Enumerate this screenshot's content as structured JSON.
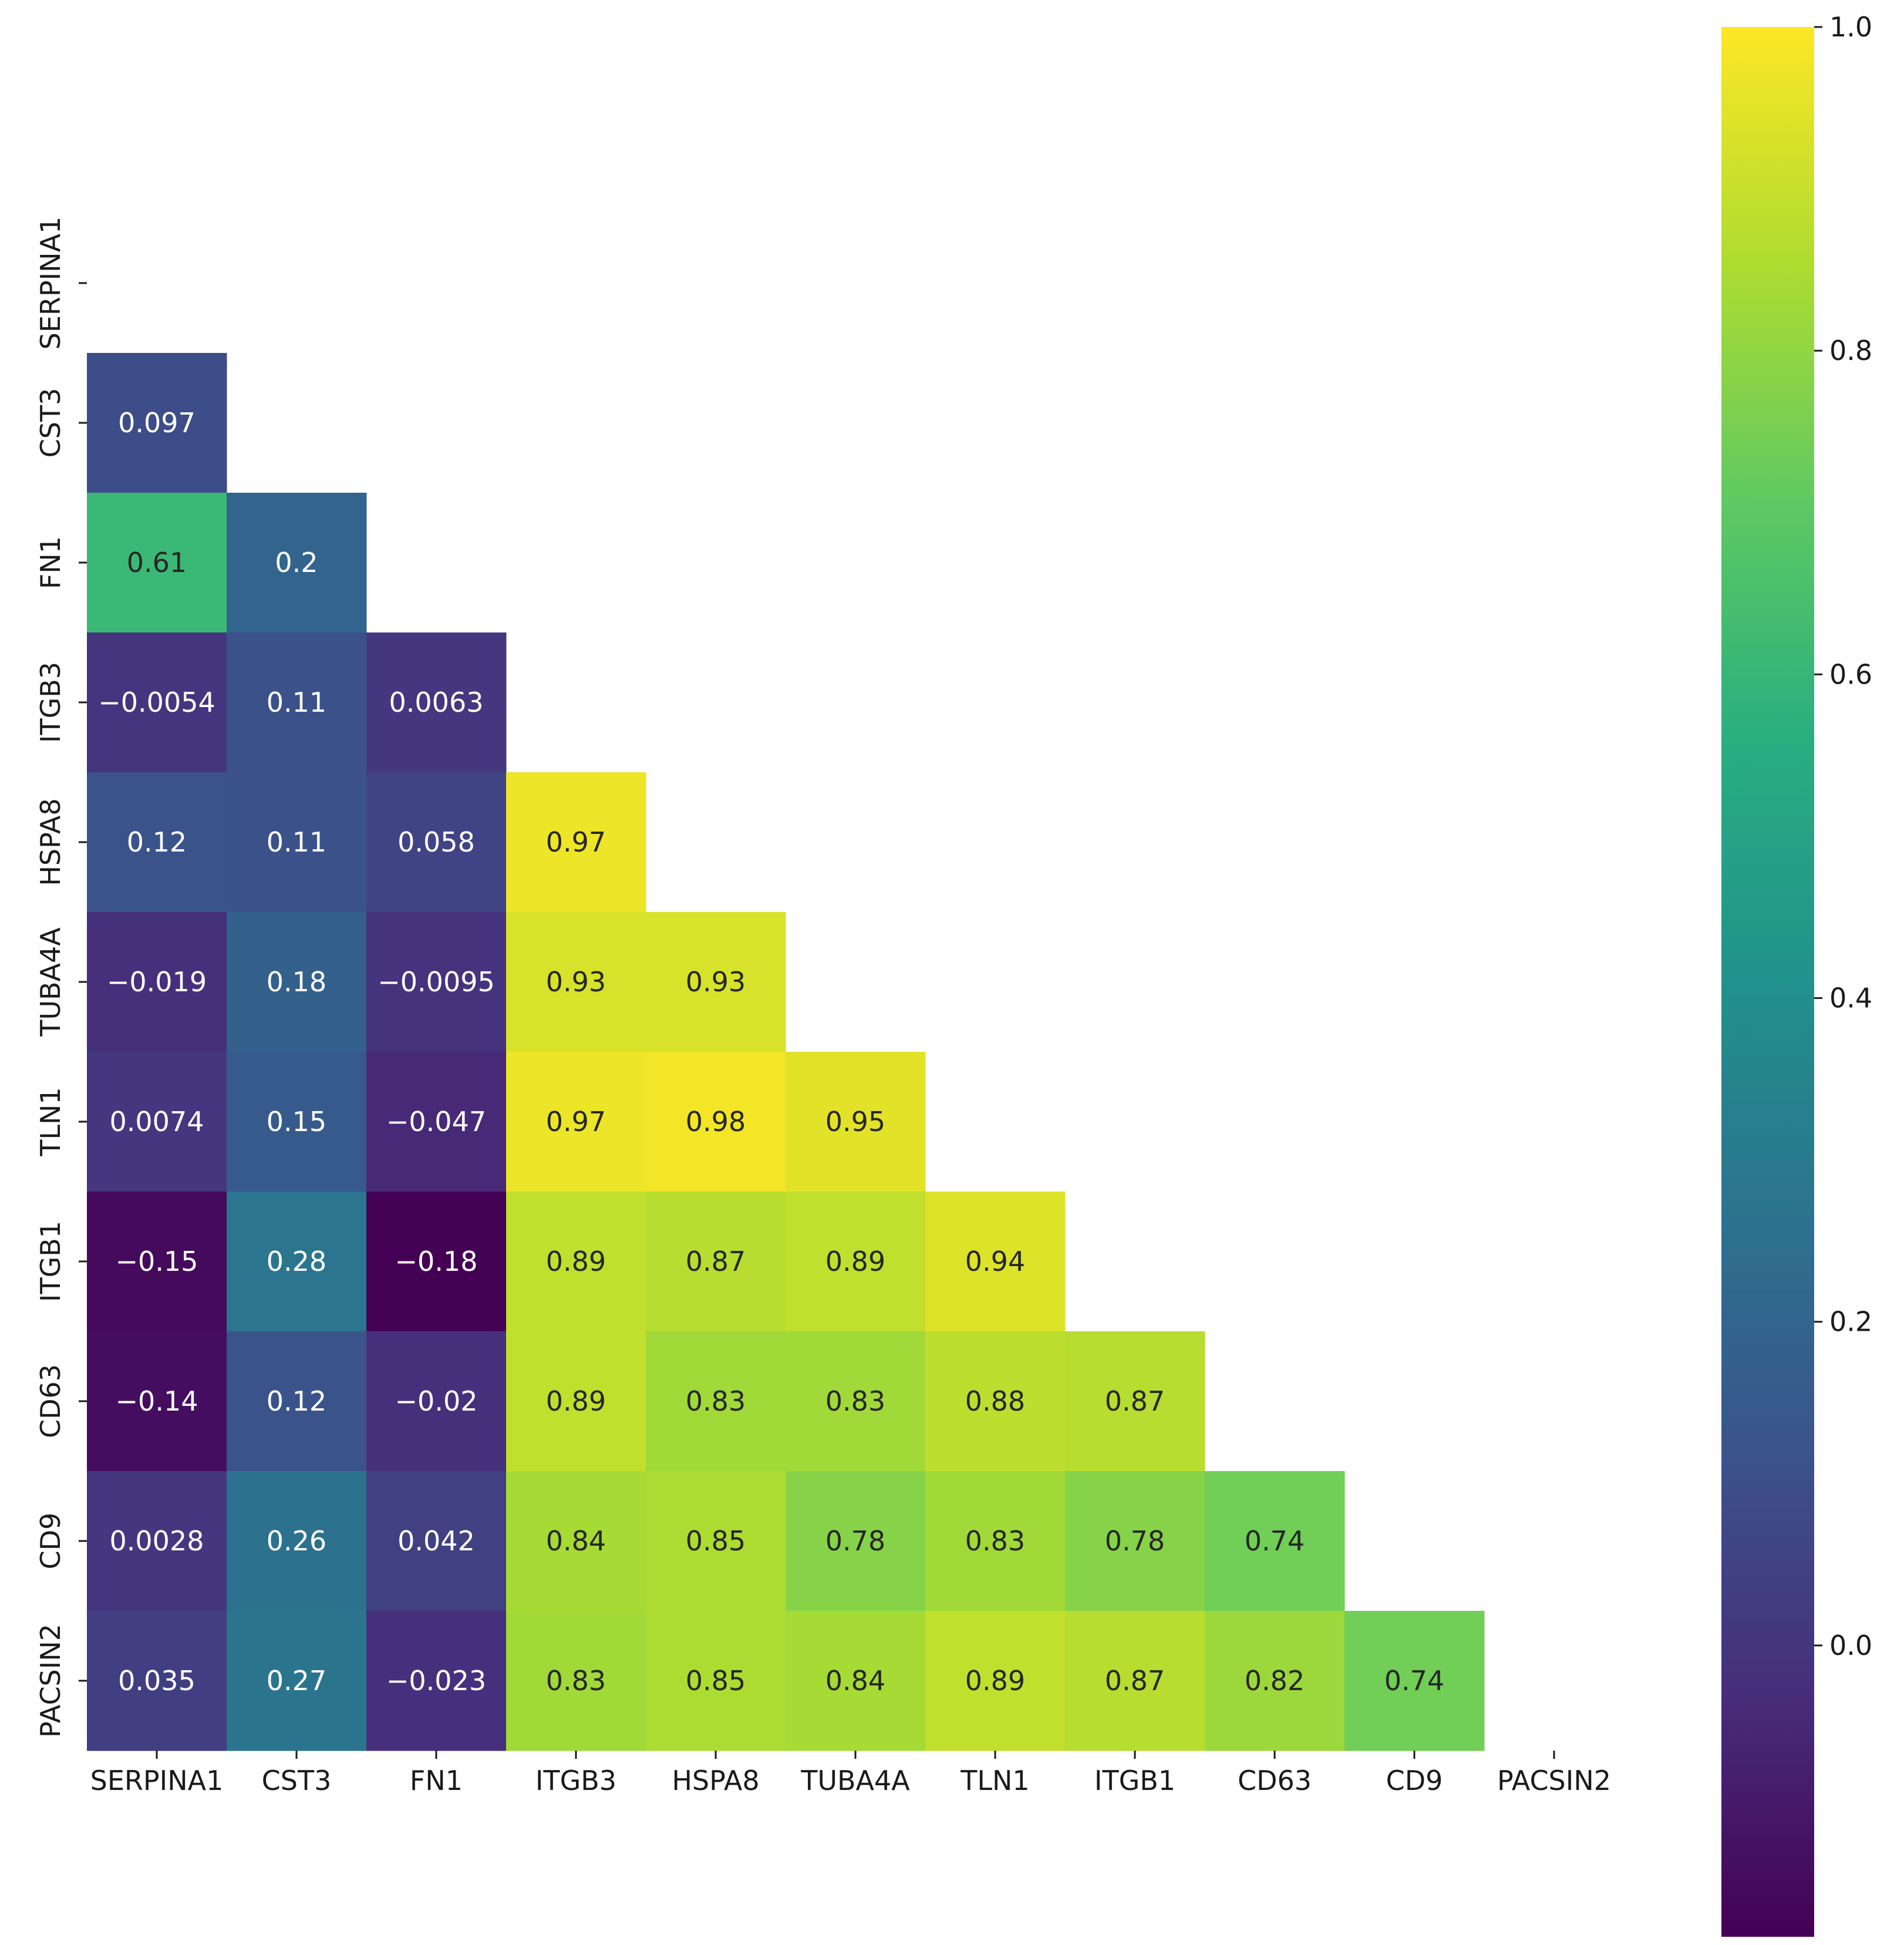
{
  "chart_data": {
    "type": "heatmap",
    "title": "",
    "xlabel": "",
    "ylabel": "",
    "labels": [
      "SERPINA1",
      "CST3",
      "FN1",
      "ITGB3",
      "HSPA8",
      "TUBA4A",
      "TLN1",
      "ITGB1",
      "CD63",
      "CD9",
      "PACSIN2"
    ],
    "mask": "upper-triangle-including-diagonal",
    "values": [
      [
        null,
        null,
        null,
        null,
        null,
        null,
        null,
        null,
        null,
        null,
        null
      ],
      [
        0.097,
        null,
        null,
        null,
        null,
        null,
        null,
        null,
        null,
        null,
        null
      ],
      [
        0.61,
        0.2,
        null,
        null,
        null,
        null,
        null,
        null,
        null,
        null,
        null
      ],
      [
        -0.0054,
        0.11,
        0.0063,
        null,
        null,
        null,
        null,
        null,
        null,
        null,
        null
      ],
      [
        0.12,
        0.11,
        0.058,
        0.97,
        null,
        null,
        null,
        null,
        null,
        null,
        null
      ],
      [
        -0.019,
        0.18,
        -0.0095,
        0.93,
        0.93,
        null,
        null,
        null,
        null,
        null,
        null
      ],
      [
        0.0074,
        0.15,
        -0.047,
        0.97,
        0.98,
        0.95,
        null,
        null,
        null,
        null,
        null
      ],
      [
        -0.15,
        0.28,
        -0.18,
        0.89,
        0.87,
        0.89,
        0.94,
        null,
        null,
        null,
        null
      ],
      [
        -0.14,
        0.12,
        -0.02,
        0.89,
        0.83,
        0.83,
        0.88,
        0.87,
        null,
        null,
        null
      ],
      [
        0.0028,
        0.26,
        0.042,
        0.84,
        0.85,
        0.78,
        0.83,
        0.78,
        0.74,
        null,
        null
      ],
      [
        0.035,
        0.27,
        -0.023,
        0.83,
        0.85,
        0.84,
        0.89,
        0.87,
        0.82,
        0.74,
        null
      ]
    ],
    "annotations": [
      [
        null,
        null,
        null,
        null,
        null,
        null,
        null,
        null,
        null,
        null,
        null
      ],
      [
        "0.097",
        null,
        null,
        null,
        null,
        null,
        null,
        null,
        null,
        null,
        null
      ],
      [
        "0.61",
        "0.2",
        null,
        null,
        null,
        null,
        null,
        null,
        null,
        null,
        null
      ],
      [
        "−0.0054",
        "0.11",
        "0.0063",
        null,
        null,
        null,
        null,
        null,
        null,
        null,
        null
      ],
      [
        "0.12",
        "0.11",
        "0.058",
        "0.97",
        null,
        null,
        null,
        null,
        null,
        null,
        null
      ],
      [
        "−0.019",
        "0.18",
        "−0.0095",
        "0.93",
        "0.93",
        null,
        null,
        null,
        null,
        null,
        null
      ],
      [
        "0.0074",
        "0.15",
        "−0.047",
        "0.97",
        "0.98",
        "0.95",
        null,
        null,
        null,
        null,
        null
      ],
      [
        "−0.15",
        "0.28",
        "−0.18",
        "0.89",
        "0.87",
        "0.89",
        "0.94",
        null,
        null,
        null,
        null
      ],
      [
        "−0.14",
        "0.12",
        "−0.02",
        "0.89",
        "0.83",
        "0.83",
        "0.88",
        "0.87",
        null,
        null,
        null
      ],
      [
        "0.0028",
        "0.26",
        "0.042",
        "0.84",
        "0.85",
        "0.78",
        "0.83",
        "0.78",
        "0.74",
        null,
        null
      ],
      [
        "0.035",
        "0.27",
        "−0.023",
        "0.83",
        "0.85",
        "0.84",
        "0.89",
        "0.87",
        "0.82",
        "0.74",
        null
      ]
    ],
    "colormap": "viridis",
    "colorbar": {
      "vmin": -0.18,
      "vmax": 1.0,
      "ticks": [
        1.0,
        0.8,
        0.6,
        0.4,
        0.2,
        0.0
      ],
      "tick_labels": [
        "1.0",
        "0.8",
        "0.6",
        "0.4",
        "0.2",
        "0.0"
      ]
    },
    "grid": false
  }
}
